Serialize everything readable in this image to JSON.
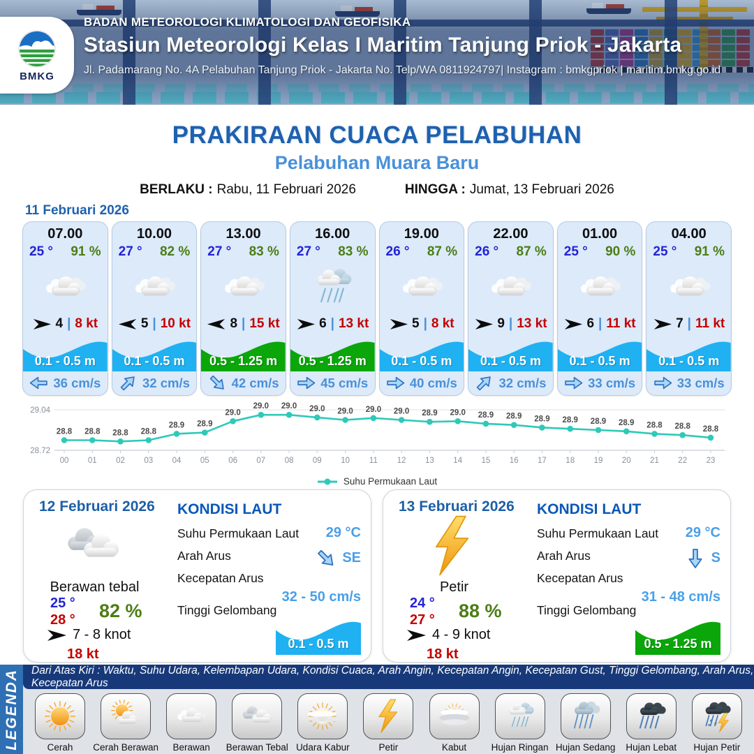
{
  "header": {
    "org": "BADAN METEOROLOGI KLIMATOLOGI DAN GEOFISIKA",
    "station": "Stasiun Meteorologi Kelas I Maritim Tanjung Priok - Jakarta",
    "address": "Jl. Padamarang No. 4A Pelabuhan Tanjung Priok - Jakarta No. Telp/WA 0811924797| Instagram : bmkgpriok | maritim.bmkg.go.id",
    "logo_text": "BMKG"
  },
  "title": {
    "main": "PRAKIRAAN CUACA PELABUHAN",
    "subtitle": "Pelabuhan Muara Baru",
    "berlaku_label": "BERLAKU :",
    "berlaku_value": "Rabu, 11 Februari 2026",
    "hingga_label": "HINGGA :",
    "hingga_value": "Jumat, 13 Februari 2026"
  },
  "hourly": {
    "date_label": "11 Februari 2026",
    "separator": "|",
    "cards": [
      {
        "time": "07.00",
        "temp": "25 °",
        "humidity": "91 %",
        "icon": "berawan",
        "wind_dir": "E",
        "wind_speed": "4",
        "gust": "8 kt",
        "wave": "0.1 - 0.5 m",
        "wave_color": "blue",
        "current_dir": "W",
        "current_speed": "36 cm/s"
      },
      {
        "time": "10.00",
        "temp": "27 °",
        "humidity": "82 %",
        "icon": "berawan",
        "wind_dir": "W",
        "wind_speed": "5",
        "gust": "10 kt",
        "wave": "0.1 - 0.5 m",
        "wave_color": "blue",
        "current_dir": "NE",
        "current_speed": "32 cm/s"
      },
      {
        "time": "13.00",
        "temp": "27 °",
        "humidity": "83 %",
        "icon": "berawan",
        "wind_dir": "W",
        "wind_speed": "8",
        "gust": "15 kt",
        "wave": "0.5 - 1.25 m",
        "wave_color": "green",
        "current_dir": "SE",
        "current_speed": "42 cm/s"
      },
      {
        "time": "16.00",
        "temp": "27 °",
        "humidity": "83 %",
        "icon": "hujan-ringan",
        "wind_dir": "E",
        "wind_speed": "6",
        "gust": "13 kt",
        "wave": "0.5 - 1.25 m",
        "wave_color": "green",
        "current_dir": "E",
        "current_speed": "45 cm/s"
      },
      {
        "time": "19.00",
        "temp": "26 °",
        "humidity": "87 %",
        "icon": "berawan",
        "wind_dir": "E",
        "wind_speed": "5",
        "gust": "8 kt",
        "wave": "0.1 - 0.5 m",
        "wave_color": "blue",
        "current_dir": "E",
        "current_speed": "40 cm/s"
      },
      {
        "time": "22.00",
        "temp": "26 °",
        "humidity": "87 %",
        "icon": "berawan",
        "wind_dir": "E",
        "wind_speed": "9",
        "gust": "13 kt",
        "wave": "0.1 - 0.5 m",
        "wave_color": "blue",
        "current_dir": "NE",
        "current_speed": "32 cm/s"
      },
      {
        "time": "01.00",
        "temp": "25 °",
        "humidity": "90 %",
        "icon": "berawan",
        "wind_dir": "E",
        "wind_speed": "6",
        "gust": "11 kt",
        "wave": "0.1 - 0.5 m",
        "wave_color": "blue",
        "current_dir": "E",
        "current_speed": "33 cm/s"
      },
      {
        "time": "04.00",
        "temp": "25 °",
        "humidity": "91 %",
        "icon": "berawan",
        "wind_dir": "E",
        "wind_speed": "7",
        "gust": "11 kt",
        "wave": "0.1 - 0.5 m",
        "wave_color": "blue",
        "current_dir": "E",
        "current_speed": "33 cm/s"
      }
    ]
  },
  "chart_data": {
    "type": "line",
    "title": "",
    "xlabel": "",
    "ylabel": "",
    "x_labels": [
      "00",
      "01",
      "02",
      "03",
      "04",
      "05",
      "06",
      "07",
      "08",
      "09",
      "10",
      "11",
      "12",
      "13",
      "14",
      "15",
      "16",
      "17",
      "18",
      "19",
      "20",
      "21",
      "22",
      "23"
    ],
    "series": [
      {
        "name": "Suhu Permukaan Laut",
        "values": [
          28.8,
          28.8,
          28.8,
          28.8,
          28.9,
          28.9,
          29.0,
          29.0,
          29.0,
          29.0,
          29.0,
          29.0,
          29.0,
          28.9,
          29.0,
          28.9,
          28.9,
          28.9,
          28.9,
          28.9,
          28.9,
          28.8,
          28.8,
          28.8
        ],
        "plot_values": [
          28.8,
          28.8,
          28.79,
          28.8,
          28.85,
          28.86,
          28.95,
          29.0,
          29.0,
          28.98,
          28.96,
          28.975,
          28.96,
          28.945,
          28.95,
          28.93,
          28.92,
          28.9,
          28.89,
          28.88,
          28.87,
          28.85,
          28.84,
          28.82
        ]
      }
    ],
    "ylim": [
      28.72,
      29.04
    ],
    "ytick_labels": [
      "29.04",
      "28.72"
    ],
    "grid": true,
    "legend_position": "bottom",
    "line_color": "#2ec9b8"
  },
  "days": [
    {
      "date": "12 Februari 2026",
      "condition": "Berawan tebal",
      "icon": "berawan-tebal",
      "temp_min": "25 °",
      "temp_max": "28 °",
      "humidity": "82 %",
      "wind_dir": "E",
      "wind": "7 - 8 knot",
      "gust": "18 kt",
      "sea": {
        "title": "KONDISI LAUT",
        "sst_label": "Suhu Permukaan Laut",
        "sst": "29 °C",
        "current_dir_label": "Arah Arus",
        "current_dir": "SE",
        "current_speed_label": "Kecepatan Arus",
        "current_speed": "32 - 50 cm/s",
        "wave_label": "Tinggi Gelombang",
        "wave": "0.1 - 0.5 m",
        "wave_color": "blue"
      }
    },
    {
      "date": "13 Februari 2026",
      "condition": "Petir",
      "icon": "petir",
      "temp_min": "24 °",
      "temp_max": "27 °",
      "humidity": "88 %",
      "wind_dir": "E",
      "wind": "4 - 9 knot",
      "gust": "18 kt",
      "sea": {
        "title": "KONDISI LAUT",
        "sst_label": "Suhu Permukaan Laut",
        "sst": "29 °C",
        "current_dir_label": "Arah Arus",
        "current_dir": "S",
        "current_speed_label": "Kecepatan Arus",
        "current_speed": "31 - 48 cm/s",
        "wave_label": "Tinggi Gelombang",
        "wave": "0.5 - 1.25 m",
        "wave_color": "green"
      }
    }
  ],
  "legend": {
    "side_label": "LEGENDA",
    "description": "Dari Atas Kiri : Waktu, Suhu Udara, Kelembapan Udara, Kondisi Cuaca, Arah Angin, Kecepatan Angin, Kecepatan Gust, Tinggi Gelombang, Arah Arus, Kecepatan Arus",
    "items": [
      {
        "label": "Cerah",
        "icon": "cerah"
      },
      {
        "label": "Cerah Berawan",
        "icon": "cerah-berawan"
      },
      {
        "label": "Berawan",
        "icon": "berawan"
      },
      {
        "label": "Berawan Tebal",
        "icon": "berawan-tebal"
      },
      {
        "label": "Udara Kabur",
        "icon": "udara-kabur"
      },
      {
        "label": "Petir",
        "icon": "petir"
      },
      {
        "label": "Kabut",
        "icon": "kabut"
      },
      {
        "label": "Hujan Ringan",
        "icon": "hujan-ringan"
      },
      {
        "label": "Hujan Sedang",
        "icon": "hujan-sedang"
      },
      {
        "label": "Hujan Lebat",
        "icon": "hujan-lebat"
      },
      {
        "label": "Hujan Petir",
        "icon": "hujan-petir"
      }
    ]
  },
  "colors": {
    "title_blue": "#1e61ae",
    "subtitle_blue": "#4a90d9",
    "temp_blue": "#2323d6",
    "temp_max_red": "#c40000",
    "humidity_green": "#4c7d15",
    "gust_red": "#c40000",
    "wave_blue": "#1fb1f2",
    "wave_green": "#0aa60a",
    "current_text_blue": "#4a90d9",
    "sea_value_blue": "#4a9fe8",
    "chart_line_teal": "#2ec9b8",
    "legend_bar_navy": "#17397a",
    "legend_side_blue": "#2f6fb3"
  }
}
